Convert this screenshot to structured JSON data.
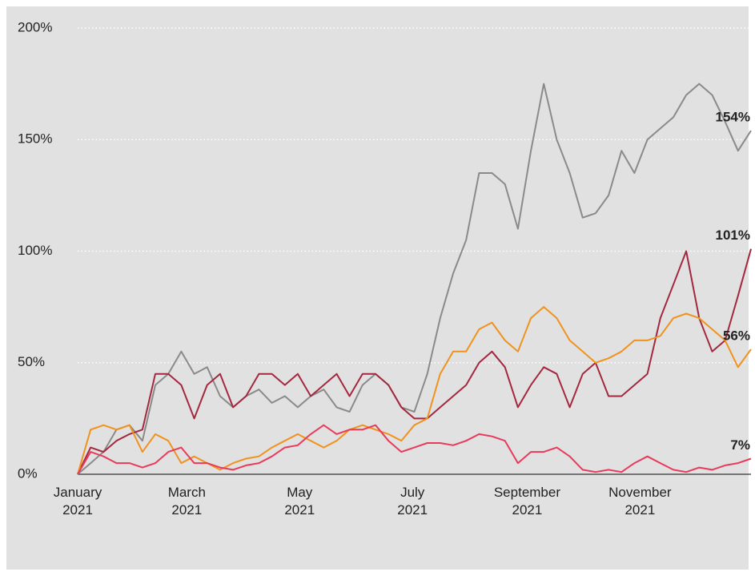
{
  "chart_data": {
    "type": "line",
    "x": [
      0,
      7,
      14,
      21,
      28,
      35,
      42,
      49,
      56,
      63,
      70,
      77,
      84,
      91,
      98,
      105,
      112,
      119,
      126,
      133,
      140,
      147,
      154,
      161,
      168,
      175,
      182,
      189,
      196,
      203,
      210,
      217,
      224,
      231,
      238,
      245,
      252,
      259,
      266,
      273,
      280,
      287,
      294,
      301,
      308,
      315,
      322,
      329,
      336,
      343,
      350,
      357,
      364
    ],
    "xlim": [
      0,
      364
    ],
    "xticks": [
      {
        "value": 0,
        "label": "January 2021"
      },
      {
        "value": 59,
        "label": "March 2021"
      },
      {
        "value": 120,
        "label": "May 2021"
      },
      {
        "value": 181,
        "label": "July 2021"
      },
      {
        "value": 243,
        "label": "September 2021"
      },
      {
        "value": 304,
        "label": "November 2021"
      }
    ],
    "ylim": [
      0,
      200
    ],
    "yticks": [
      {
        "value": 0,
        "label": "0%"
      },
      {
        "value": 50,
        "label": "50%"
      },
      {
        "value": 100,
        "label": "100%"
      },
      {
        "value": 150,
        "label": "150%"
      },
      {
        "value": 200,
        "label": "200%"
      }
    ],
    "grid": true,
    "series": [
      {
        "color": "#8a8a8a",
        "end_label": "154%",
        "values": [
          0,
          5,
          10,
          20,
          22,
          15,
          40,
          45,
          55,
          45,
          48,
          35,
          30,
          35,
          38,
          32,
          35,
          30,
          35,
          38,
          30,
          28,
          40,
          45,
          40,
          30,
          28,
          45,
          70,
          90,
          105,
          135,
          135,
          130,
          110,
          145,
          175,
          150,
          135,
          115,
          117,
          125,
          145,
          135,
          150,
          155,
          160,
          170,
          175,
          170,
          158,
          145,
          154
        ]
      },
      {
        "color": "#a3283f",
        "end_label": "101%",
        "values": [
          0,
          12,
          10,
          15,
          18,
          20,
          45,
          45,
          40,
          25,
          40,
          45,
          30,
          35,
          45,
          45,
          40,
          45,
          35,
          40,
          45,
          35,
          45,
          45,
          40,
          30,
          25,
          25,
          30,
          35,
          40,
          50,
          55,
          48,
          30,
          40,
          48,
          45,
          30,
          45,
          50,
          35,
          35,
          40,
          45,
          70,
          85,
          100,
          70,
          55,
          60,
          80,
          101
        ]
      },
      {
        "color": "#f0921e",
        "end_label": "56%",
        "values": [
          0,
          20,
          22,
          20,
          22,
          10,
          18,
          15,
          5,
          8,
          5,
          2,
          5,
          7,
          8,
          12,
          15,
          18,
          15,
          12,
          15,
          20,
          22,
          20,
          18,
          15,
          22,
          25,
          45,
          55,
          55,
          65,
          68,
          60,
          55,
          70,
          75,
          70,
          60,
          55,
          50,
          52,
          55,
          60,
          60,
          62,
          70,
          72,
          70,
          65,
          60,
          48,
          56
        ]
      },
      {
        "color": "#e83a5a",
        "end_label": "7%",
        "values": [
          0,
          10,
          8,
          5,
          5,
          3,
          5,
          10,
          12,
          5,
          5,
          3,
          2,
          4,
          5,
          8,
          12,
          13,
          18,
          22,
          18,
          20,
          20,
          22,
          15,
          10,
          12,
          14,
          14,
          13,
          15,
          18,
          17,
          15,
          5,
          10,
          10,
          12,
          8,
          2,
          1,
          2,
          1,
          5,
          8,
          5,
          2,
          1,
          3,
          2,
          4,
          5,
          7
        ]
      }
    ]
  }
}
